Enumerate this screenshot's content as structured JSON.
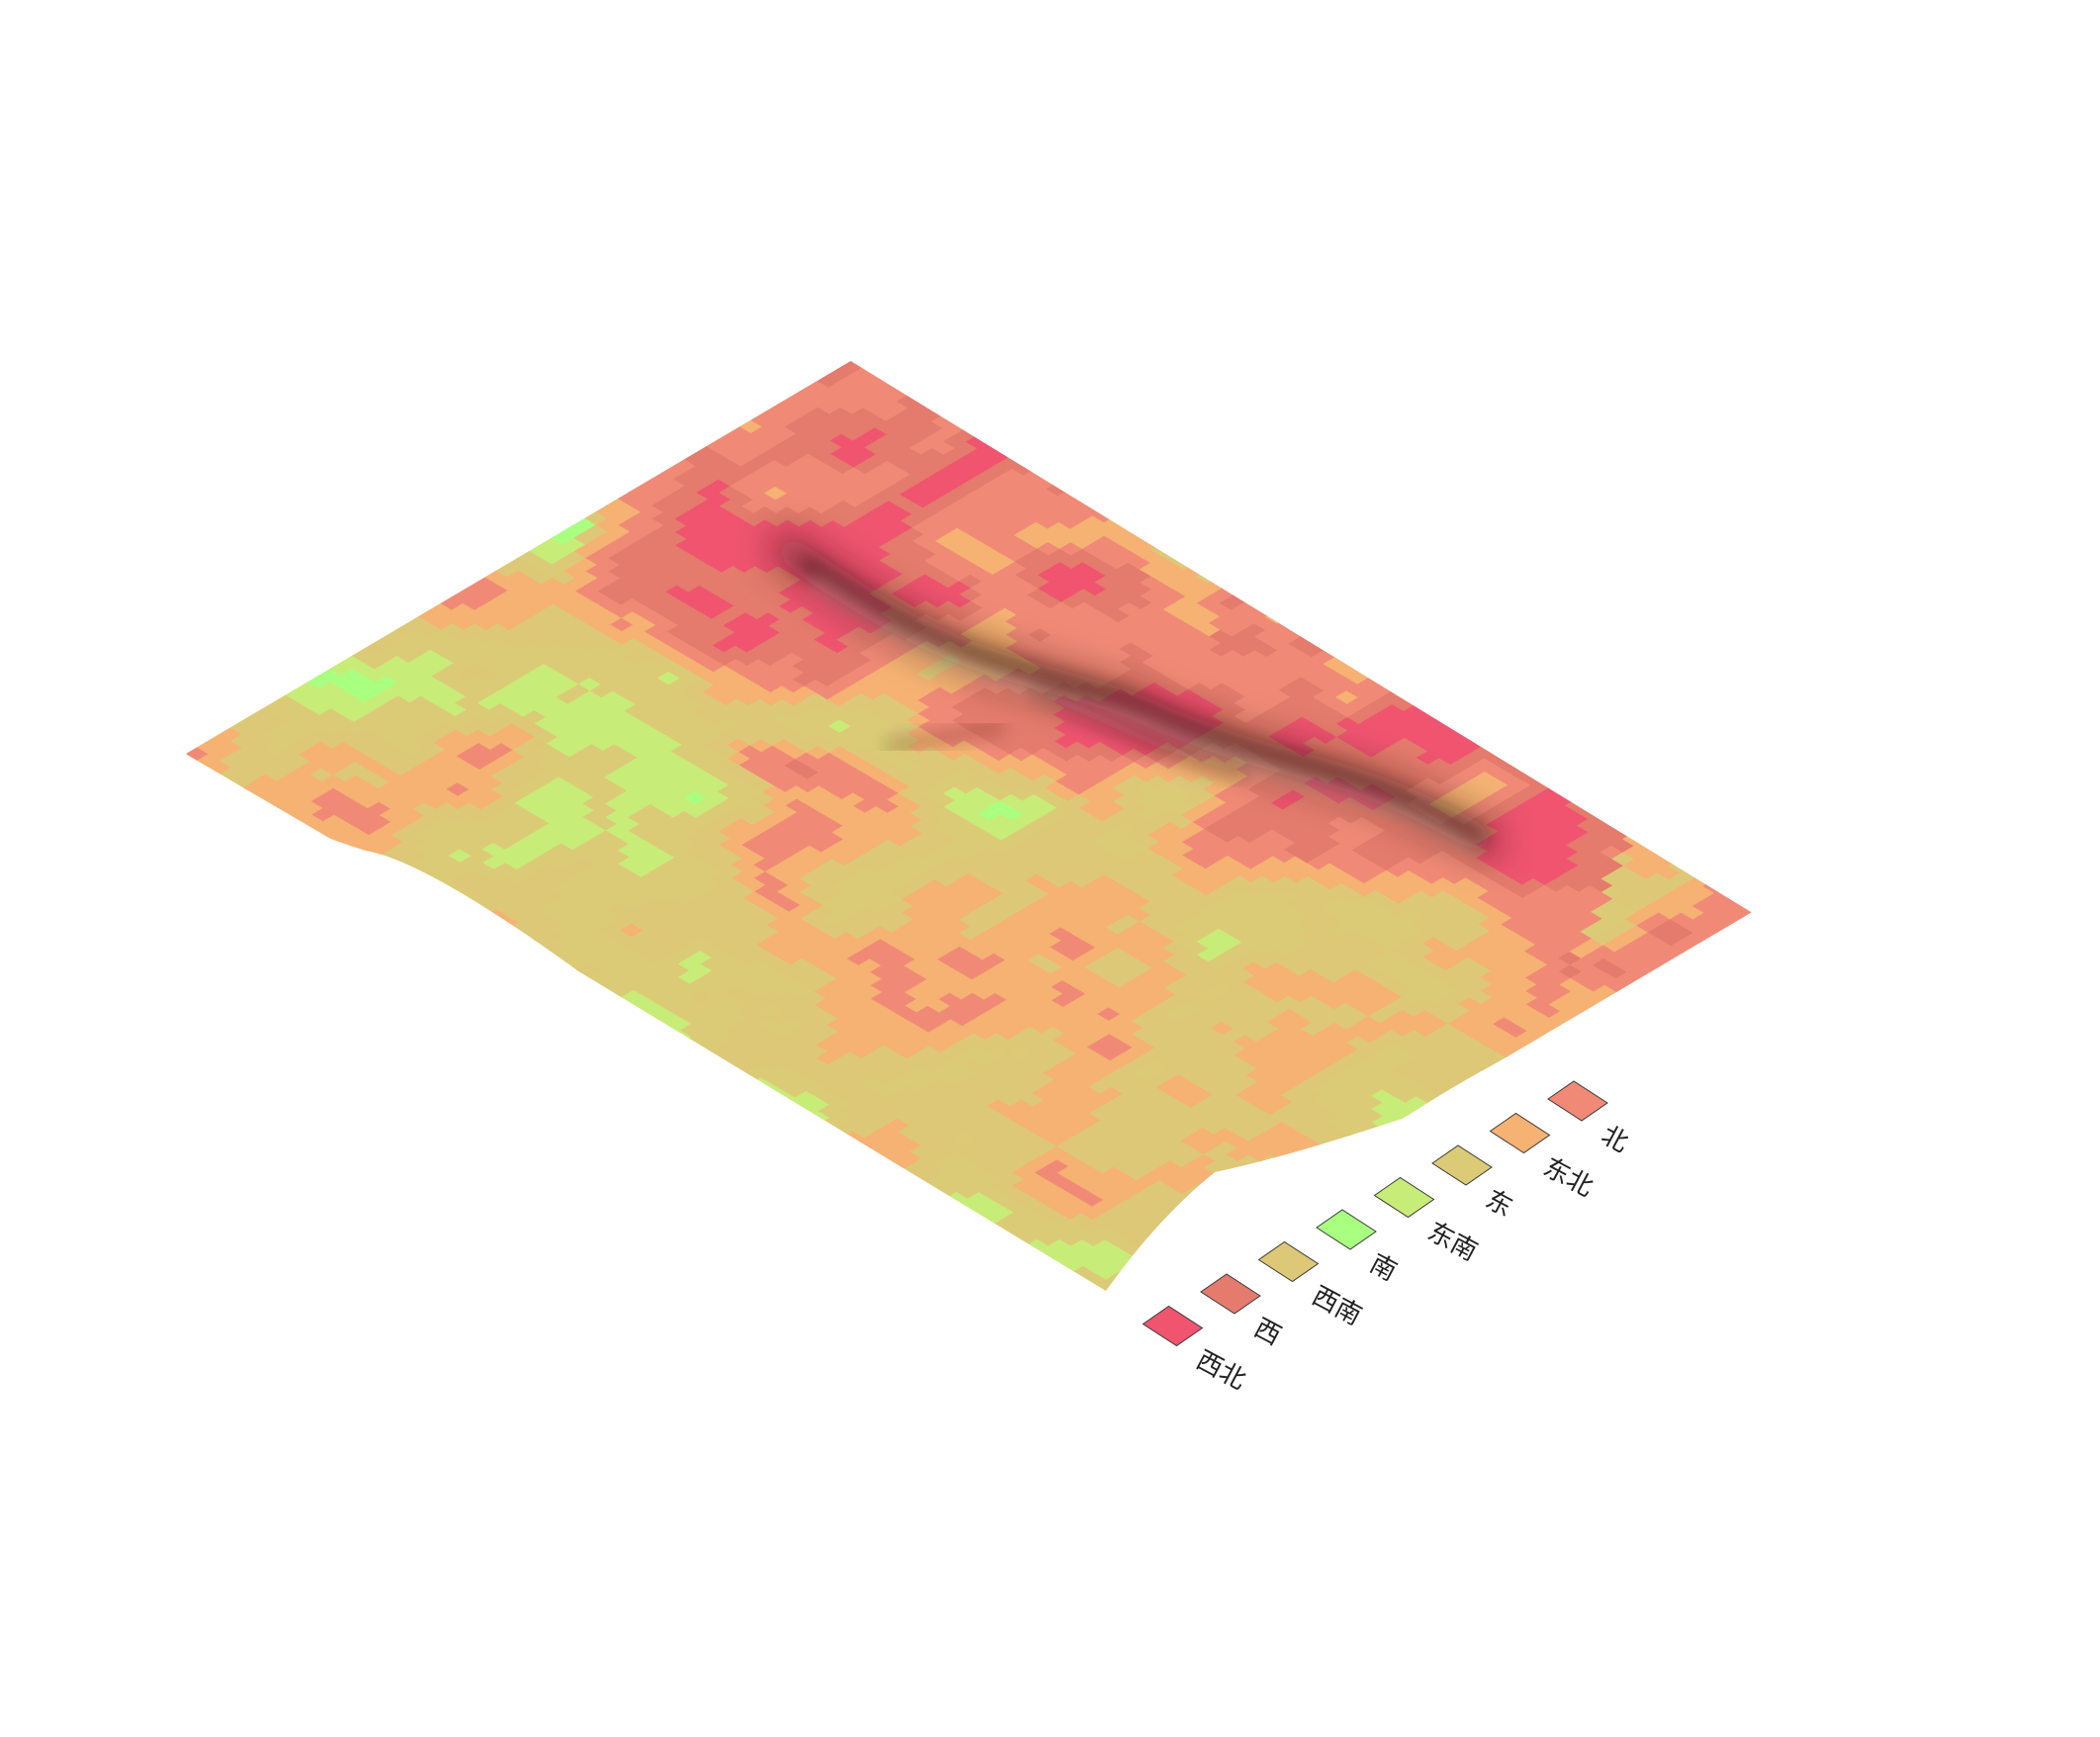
{
  "map": {
    "type": "aspect-classification-terrain-3d",
    "relief": "ridge with a dark shaded crest running diagonally through the upper-right part of the sheet"
  },
  "legend": {
    "items": [
      {
        "label": "北",
        "color": "#f08a76"
      },
      {
        "label": "东北",
        "color": "#f5b273"
      },
      {
        "label": "东",
        "color": "#dccb76"
      },
      {
        "label": "东南",
        "color": "#c8ec78"
      },
      {
        "label": "南",
        "color": "#a8ff80"
      },
      {
        "label": "西南",
        "color": "#ddc878"
      },
      {
        "label": "西",
        "color": "#e47b6c"
      },
      {
        "label": "西北",
        "color": "#f0546f"
      }
    ]
  }
}
